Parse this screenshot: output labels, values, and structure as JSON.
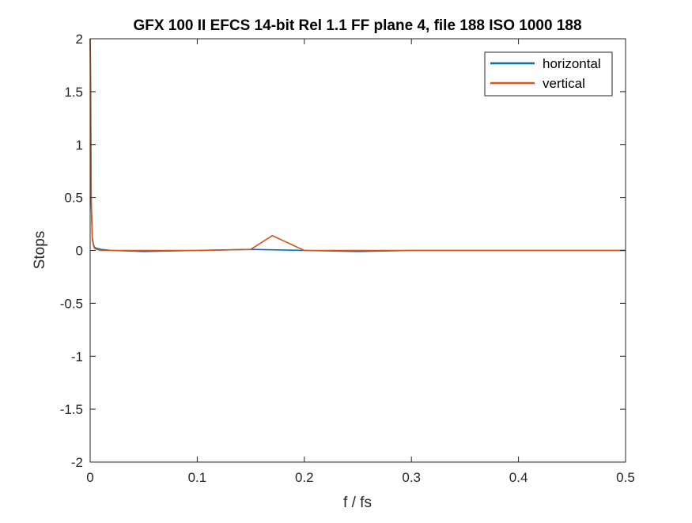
{
  "chart_data": {
    "type": "line",
    "title": "GFX 100 II EFCS 14-bit Rel 1.1 FF plane 4, file 188 ISO 1000 188",
    "xlabel": "f / fs",
    "ylabel": "Stops",
    "xlim": [
      0,
      0.5
    ],
    "ylim": [
      -2,
      2
    ],
    "xticks": [
      0,
      0.1,
      0.2,
      0.3,
      0.4,
      0.5
    ],
    "xtick_labels": [
      "0",
      "0.1",
      "0.2",
      "0.3",
      "0.4",
      "0.5"
    ],
    "yticks": [
      -2,
      -1.5,
      -1,
      -0.5,
      0,
      0.5,
      1,
      1.5,
      2
    ],
    "ytick_labels": [
      "-2",
      "-1.5",
      "-1",
      "-0.5",
      "0",
      "0.5",
      "1",
      "1.5",
      "2"
    ],
    "grid": false,
    "legend_position": "top-right",
    "series": [
      {
        "name": "horizontal",
        "color": "#0072BD",
        "x": [
          0,
          0.0005,
          0.001,
          0.002,
          0.003,
          0.004,
          0.006,
          0.01,
          0.02,
          0.05,
          0.1,
          0.15,
          0.2,
          0.25,
          0.3,
          0.35,
          0.4,
          0.45,
          0.5
        ],
        "y": [
          2.0,
          1.2,
          0.45,
          0.12,
          0.06,
          0.03,
          0.02,
          0.01,
          0.0,
          -0.01,
          0.0,
          0.01,
          0.0,
          -0.01,
          0.0,
          0.0,
          0.0,
          0.0,
          0.0
        ]
      },
      {
        "name": "vertical",
        "color": "#D95319",
        "x": [
          0,
          0.0005,
          0.001,
          0.002,
          0.003,
          0.004,
          0.006,
          0.01,
          0.02,
          0.05,
          0.1,
          0.15,
          0.17,
          0.2,
          0.25,
          0.3,
          0.35,
          0.4,
          0.45,
          0.5
        ],
        "y": [
          2.0,
          1.6,
          0.5,
          0.1,
          0.05,
          0.02,
          0.01,
          0.0,
          0.0,
          0.0,
          0.0,
          0.01,
          0.14,
          0.0,
          0.0,
          0.0,
          0.0,
          0.0,
          0.0,
          0.0
        ]
      }
    ]
  }
}
